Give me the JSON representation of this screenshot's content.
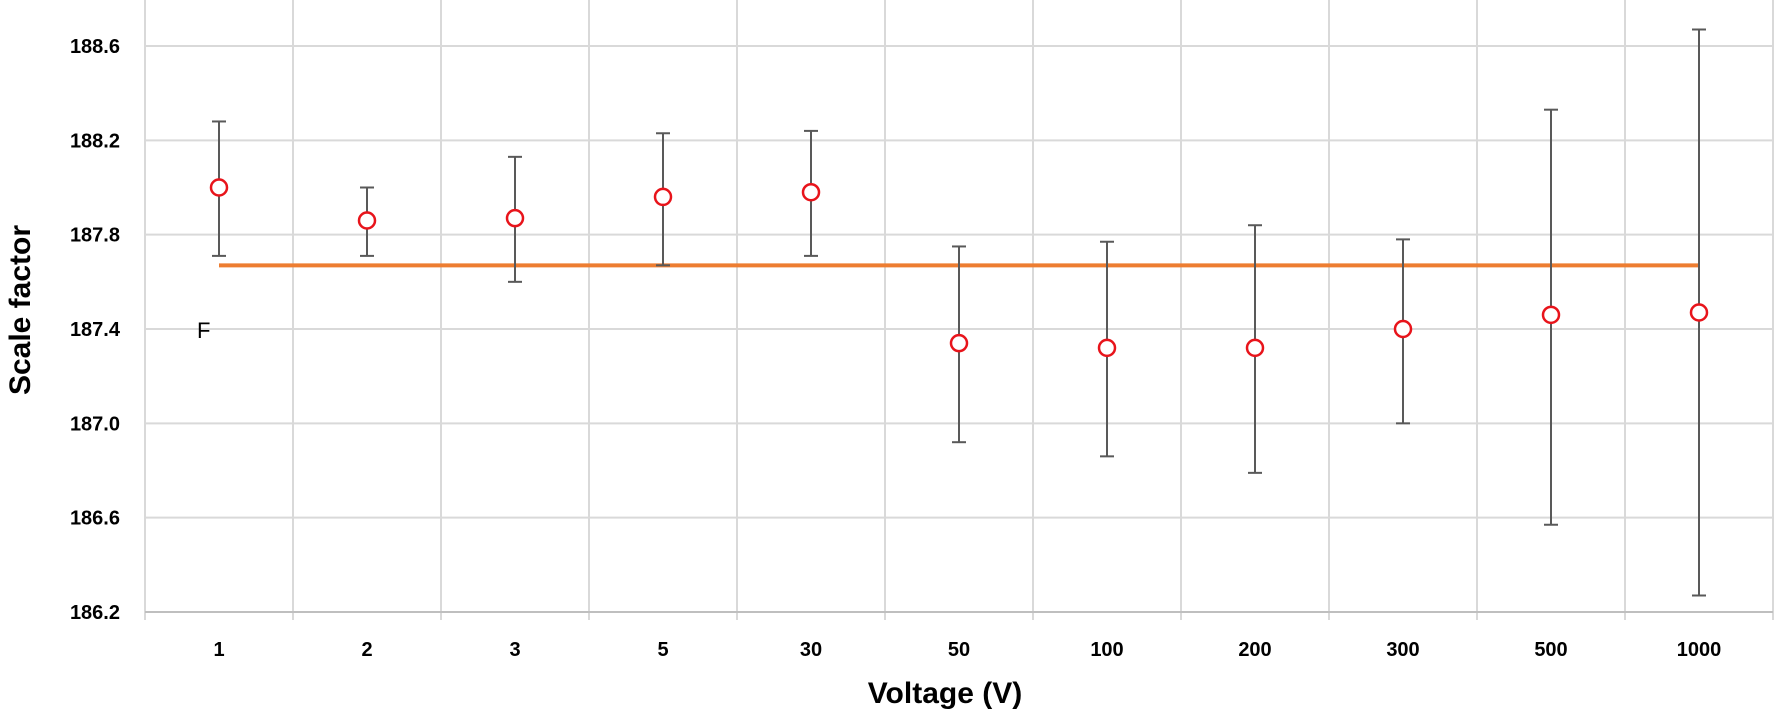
{
  "chart_data": {
    "type": "scatter",
    "title": "",
    "xlabel": "Voltage (V)",
    "ylabel": "Scale factor",
    "categories": [
      "1",
      "2",
      "3",
      "5",
      "30",
      "50",
      "100",
      "200",
      "300",
      "500",
      "1000"
    ],
    "ylim": [
      186.2,
      188.8
    ],
    "yticks": [
      "186.2",
      "186.6",
      "187.0",
      "187.4",
      "187.8",
      "188.2",
      "188.6"
    ],
    "grid": true,
    "legend": "none",
    "series": [
      {
        "marker": "open-circle",
        "color": "#e8141b",
        "values": [
          188.0,
          187.86,
          187.87,
          187.96,
          187.98,
          187.34,
          187.32,
          187.32,
          187.4,
          187.46,
          187.47
        ],
        "error_low": [
          187.71,
          187.71,
          187.6,
          187.67,
          187.71,
          186.92,
          186.86,
          186.79,
          187.0,
          186.57,
          186.27
        ],
        "error_high": [
          188.28,
          188.0,
          188.13,
          188.23,
          188.24,
          187.75,
          187.77,
          187.84,
          187.78,
          188.33,
          188.67
        ]
      }
    ],
    "reference_line": {
      "value": 187.67,
      "color": "#ed7d31"
    },
    "annotation": "F"
  }
}
